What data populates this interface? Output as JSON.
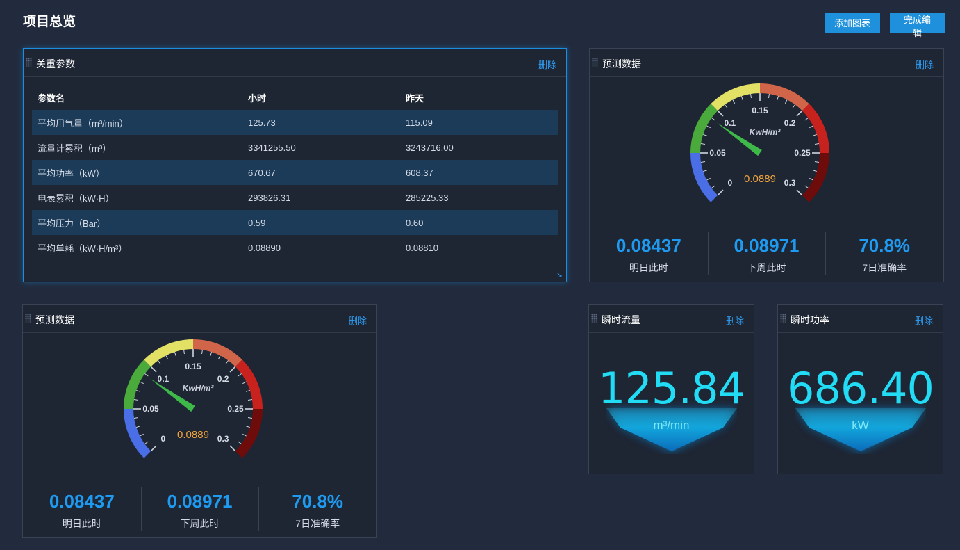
{
  "page": {
    "title": "项目总览"
  },
  "toolbar": {
    "add_chart": "添加图表",
    "finish_edit": "完成编辑"
  },
  "key_params": {
    "title": "关重参数",
    "delete": "删除",
    "headers": [
      "参数名",
      "小时",
      "昨天"
    ],
    "rows": [
      [
        "平均用气量（m³/min）",
        "125.73",
        "115.09"
      ],
      [
        "流量计累积（m³）",
        "3341255.50",
        "3243716.00"
      ],
      [
        "平均功率（kW）",
        "670.67",
        "608.37"
      ],
      [
        "电表累积（kW·H）",
        "293826.31",
        "285225.33"
      ],
      [
        "平均压力（Bar）",
        "0.59",
        "0.60"
      ],
      [
        "平均单耗（kW·H/m³）",
        "0.08890",
        "0.08810"
      ]
    ]
  },
  "forecast": {
    "title": "预测数据",
    "delete": "删除",
    "gauge": {
      "unit": "KwH/m³",
      "value": 0.0889,
      "value_label": "0.0889",
      "min": 0,
      "max": 0.3,
      "tick_labels": [
        "0",
        "0.05",
        "0.1",
        "0.15",
        "0.2",
        "0.25",
        "0.3"
      ],
      "band_colors": [
        "#4a6ee6",
        "#4aaa3c",
        "#e3e066",
        "#d0654a",
        "#c8221e",
        "#6e0b0b"
      ]
    },
    "stats": [
      {
        "value": "0.08437",
        "label": "明日此时"
      },
      {
        "value": "0.08971",
        "label": "下周此时"
      },
      {
        "value": "70.8%",
        "label": "7日准确率"
      }
    ]
  },
  "instant_flow": {
    "title": "瞬时流量",
    "delete": "删除",
    "value": "125.84",
    "unit": "m³/min"
  },
  "instant_power": {
    "title": "瞬时功率",
    "delete": "删除",
    "value": "686.40",
    "unit": "kW"
  }
}
